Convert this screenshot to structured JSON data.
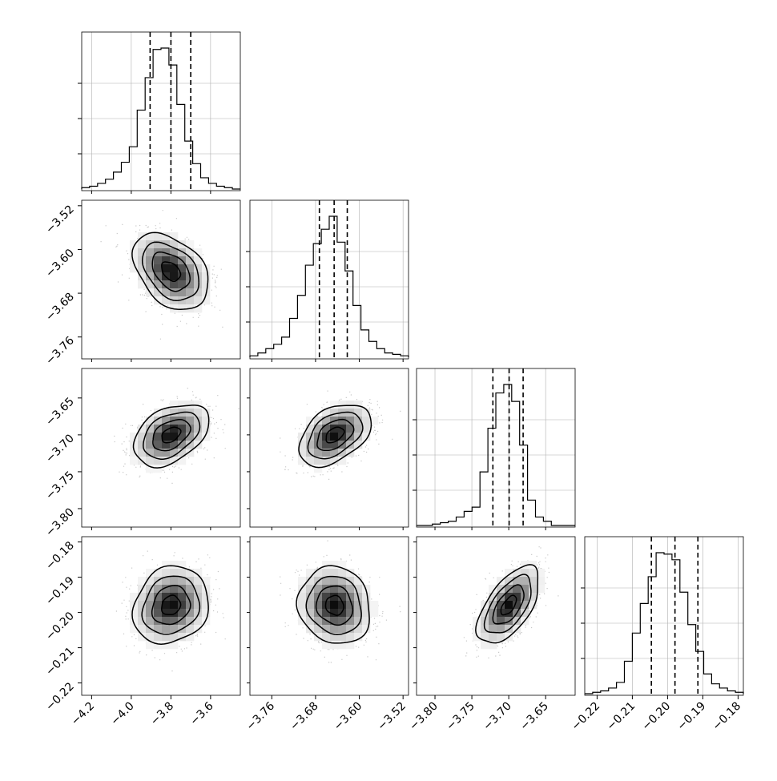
{
  "chart_data": {
    "type": "corner",
    "variables": [
      {
        "index": 0,
        "range": [
          -4.25,
          -3.45
        ],
        "ticks": [
          -4.2,
          -4.0,
          -3.8,
          -3.6
        ],
        "tick_labels": [
          "−4.2",
          "−4.0",
          "−3.8",
          "−3.6"
        ],
        "quantiles": [
          -3.905,
          -3.8,
          -3.7
        ],
        "hist_start": -4.25,
        "hist_step": 0.04,
        "hist_counts": [
          1,
          2,
          4,
          7,
          12,
          19,
          30,
          56,
          79,
          99,
          100,
          88,
          60,
          34,
          18,
          8,
          4,
          2,
          1,
          0
        ]
      },
      {
        "index": 1,
        "range": [
          -3.8,
          -3.51
        ],
        "ticks": [
          -3.76,
          -3.68,
          -3.6,
          -3.52
        ],
        "tick_labels": [
          "−3.76",
          "−3.68",
          "−3.60",
          "−3.52"
        ],
        "quantiles": [
          -3.673,
          -3.646,
          -3.622
        ],
        "hist_start": -3.8,
        "hist_step": 0.0145,
        "hist_counts": [
          1,
          3,
          6,
          9,
          14,
          27,
          43,
          64,
          79,
          89,
          98,
          80,
          60,
          36,
          19,
          11,
          6,
          3,
          2,
          1
        ]
      },
      {
        "index": 2,
        "range": [
          -3.825,
          -3.61
        ],
        "ticks": [
          -3.8,
          -3.75,
          -3.7,
          -3.65
        ],
        "tick_labels": [
          "−3.80",
          "−3.75",
          "−3.70",
          "−3.65"
        ],
        "quantiles": [
          -3.7215,
          -3.6995,
          -3.6805
        ],
        "hist_start": -3.825,
        "hist_step": 0.01075,
        "hist_counts": [
          0,
          0,
          1,
          2,
          3,
          6,
          10,
          13,
          38,
          69,
          94,
          100,
          88,
          57,
          18,
          6,
          3,
          0,
          0,
          0
        ]
      },
      {
        "index": 3,
        "range": [
          -0.2235,
          -0.1785
        ],
        "ticks": [
          -0.22,
          -0.21,
          -0.2,
          -0.19,
          -0.18
        ],
        "tick_labels": [
          "−0.22",
          "−0.21",
          "−0.20",
          "−0.19",
          "−0.18"
        ],
        "quantiles": [
          -0.2046,
          -0.1979,
          -0.1914
        ],
        "hist_start": -0.2235,
        "hist_step": 0.00225,
        "hist_counts": [
          0,
          1,
          2,
          4,
          8,
          23,
          43,
          64,
          83,
          100,
          99,
          95,
          72,
          49,
          30,
          14,
          7,
          4,
          2,
          1
        ]
      }
    ],
    "pairs": [
      {
        "x": 0,
        "y": 1,
        "mean": [
          -3.8,
          -3.64
        ],
        "sd": [
          0.095,
          0.035
        ],
        "corr": -0.38
      },
      {
        "x": 0,
        "y": 2,
        "mean": [
          -3.8,
          -3.7
        ],
        "sd": [
          0.095,
          0.021
        ],
        "corr": 0.4
      },
      {
        "x": 1,
        "y": 2,
        "mean": [
          -3.645,
          -3.7
        ],
        "sd": [
          0.033,
          0.021
        ],
        "corr": 0.42
      },
      {
        "x": 0,
        "y": 3,
        "mean": [
          -3.8,
          -0.198
        ],
        "sd": [
          0.095,
          0.0055
        ],
        "corr": 0.15
      },
      {
        "x": 1,
        "y": 3,
        "mean": [
          -3.645,
          -0.198
        ],
        "sd": [
          0.033,
          0.0055
        ],
        "corr": -0.1
      },
      {
        "x": 2,
        "y": 3,
        "mean": [
          -3.7,
          -0.198
        ],
        "sd": [
          0.021,
          0.0055
        ],
        "corr": 0.6
      }
    ],
    "contour_levels": [
      0.5,
      1.0,
      1.5,
      2.0
    ],
    "grid": true,
    "colors": {
      "line": "#000000",
      "grid": "#b0b0b0",
      "scatter": "#9a9a9a",
      "density": "#000000"
    }
  }
}
